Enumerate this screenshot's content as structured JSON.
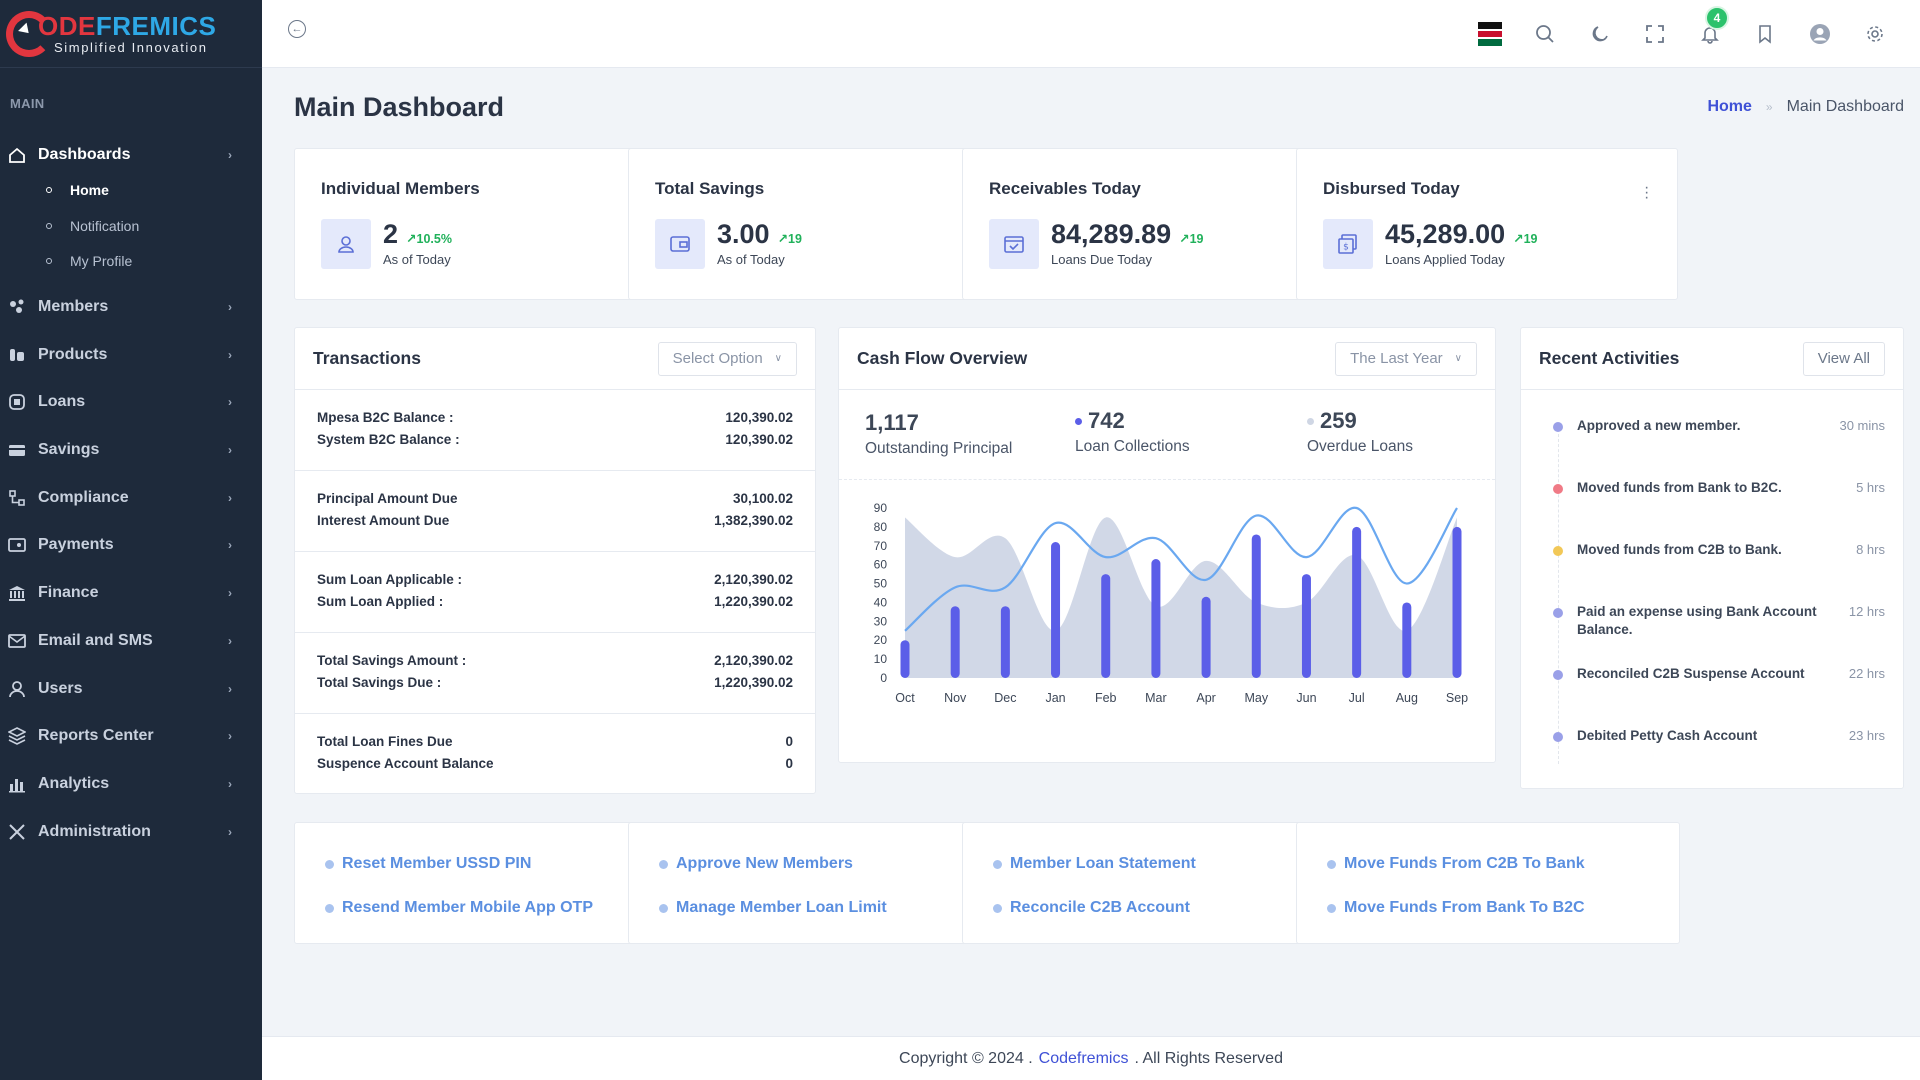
{
  "brand": {
    "prefix_c": "C",
    "ode": "ODE",
    "rest": "FREMICS",
    "fr_color": "#2ea8e6",
    "tagline": "Simplified Innovation"
  },
  "sidebar": {
    "section": "MAIN",
    "items": [
      {
        "label": "Dashboards",
        "icon": "home-icon",
        "active": true
      },
      {
        "label": "Members",
        "icon": "members-icon"
      },
      {
        "label": "Products",
        "icon": "products-icon"
      },
      {
        "label": "Loans",
        "icon": "loans-icon"
      },
      {
        "label": "Savings",
        "icon": "savings-icon"
      },
      {
        "label": "Compliance",
        "icon": "compliance-icon"
      },
      {
        "label": "Payments",
        "icon": "payments-icon"
      },
      {
        "label": "Finance",
        "icon": "bank-icon"
      },
      {
        "label": "Email and SMS",
        "icon": "mail-icon"
      },
      {
        "label": "Users",
        "icon": "user-icon"
      },
      {
        "label": "Reports Center",
        "icon": "layers-icon"
      },
      {
        "label": "Analytics",
        "icon": "bar-chart-icon"
      },
      {
        "label": "Administration",
        "icon": "tools-icon"
      }
    ],
    "subitems": [
      {
        "label": "Home",
        "active": true
      },
      {
        "label": "Notification"
      },
      {
        "label": "My Profile"
      }
    ]
  },
  "topbar": {
    "notification_count": "4"
  },
  "page": {
    "title": "Main Dashboard",
    "breadcrumb_home": "Home",
    "breadcrumb_current": "Main Dashboard"
  },
  "stats": [
    {
      "title": "Individual Members",
      "value": "2",
      "trend": "10.5%",
      "sub": "As of Today",
      "icon": "user-icon"
    },
    {
      "title": "Total Savings",
      "value": "3.00",
      "trend": "19",
      "sub": "As of Today",
      "icon": "wallet-icon"
    },
    {
      "title": "Receivables Today",
      "value": "84,289.89",
      "trend": "19",
      "sub": "Loans Due Today",
      "icon": "calendar-icon"
    },
    {
      "title": "Disbursed Today",
      "value": "45,289.00",
      "trend": "19",
      "sub": "Loans Applied Today",
      "icon": "money-icon"
    }
  ],
  "transactions": {
    "title": "Transactions",
    "select_placeholder": "Select Option",
    "blocks": [
      [
        {
          "label": "Mpesa B2C Balance :",
          "value": "120,390.02"
        },
        {
          "label": "System B2C Balance :",
          "value": "120,390.02"
        }
      ],
      [
        {
          "label": "Principal Amount Due",
          "value": "30,100.02"
        },
        {
          "label": "Interest Amount Due",
          "value": "1,382,390.02"
        }
      ],
      [
        {
          "label": "Sum Loan Applicable :",
          "value": "2,120,390.02"
        },
        {
          "label": "Sum Loan Applied :",
          "value": "1,220,390.02"
        }
      ],
      [
        {
          "label": "Total Savings Amount :",
          "value": "2,120,390.02"
        },
        {
          "label": "Total Savings Due :",
          "value": "1,220,390.02"
        }
      ],
      [
        {
          "label": "Total Loan Fines Due",
          "value": "0"
        },
        {
          "label": "Suspence Account Balance",
          "value": "0"
        }
      ]
    ]
  },
  "cashflow": {
    "title": "Cash Flow Overview",
    "range": "The Last Year",
    "summary": [
      {
        "value": "1,117",
        "label": "Outstanding Principal"
      },
      {
        "value": "742",
        "label": "Loan Collections",
        "dot": "#5b5ee8"
      },
      {
        "value": "259",
        "label": "Overdue Loans",
        "dot": "#cfd6e4"
      }
    ]
  },
  "chart_data": {
    "type": "bar",
    "categories": [
      "Oct",
      "Nov",
      "Dec",
      "Jan",
      "Feb",
      "Mar",
      "Apr",
      "May",
      "Jun",
      "Jul",
      "Aug",
      "Sep"
    ],
    "ylim": [
      0,
      90
    ],
    "yticks": [
      0,
      10,
      20,
      30,
      40,
      50,
      60,
      70,
      80,
      90
    ],
    "series": [
      {
        "type": "bar",
        "color": "#5b5ee8",
        "values": [
          20,
          38,
          38,
          72,
          55,
          63,
          43,
          76,
          55,
          80,
          40,
          80
        ]
      },
      {
        "type": "area",
        "color": "#cfd6e6",
        "values": [
          85,
          64,
          74,
          25,
          85,
          38,
          62,
          40,
          40,
          65,
          25,
          85
        ]
      },
      {
        "type": "line",
        "color": "#6aa8f0",
        "values": [
          25,
          48,
          48,
          82,
          64,
          74,
          52,
          86,
          64,
          90,
          50,
          90
        ]
      }
    ]
  },
  "activities": {
    "title": "Recent Activities",
    "view_all": "View All",
    "items": [
      {
        "text": "Approved a new member.",
        "time": "30 mins",
        "color": "#9aa0e8"
      },
      {
        "text": "Moved funds from Bank to B2C.",
        "time": "5 hrs",
        "color": "#f07a86"
      },
      {
        "text": "Moved funds from C2B to Bank.",
        "time": "8 hrs",
        "color": "#f2c857"
      },
      {
        "text": "Paid an expense using Bank Account Balance.",
        "time": "12 hrs",
        "color": "#9aa0e8"
      },
      {
        "text": "Reconciled C2B Suspense Account",
        "time": "22 hrs",
        "color": "#9aa0e8"
      },
      {
        "text": "Debited Petty Cash Account",
        "time": "23 hrs",
        "color": "#9aa0e8"
      }
    ]
  },
  "quick_links": [
    [
      "Reset Member USSD PIN",
      "Resend Member Mobile App OTP"
    ],
    [
      "Approve New Members",
      "Manage Member Loan Limit"
    ],
    [
      "Member Loan Statement",
      "Reconcile C2B Account"
    ],
    [
      "Move Funds From C2B To Bank",
      "Move Funds From Bank To B2C"
    ]
  ],
  "footer": {
    "prefix": "Copyright © 2024 .",
    "company": "Codefremics",
    "suffix": ". All Rights Reserved"
  }
}
